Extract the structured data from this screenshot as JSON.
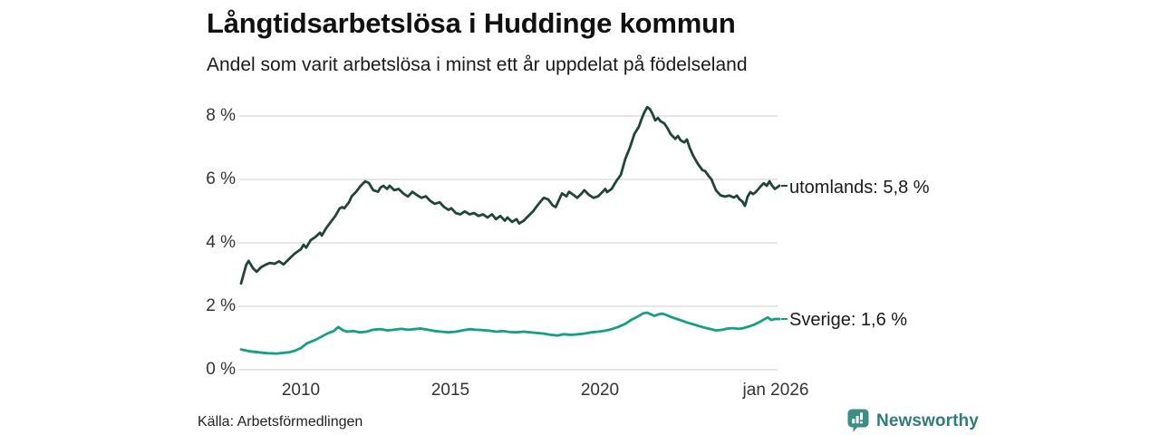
{
  "header": {
    "title": "Långtidsarbetslösa i Huddinge kommun",
    "subtitle": "Andel som varit arbetslösa i minst ett år uppdelat på födelseland"
  },
  "footer": {
    "source": "Källa: Arbetsförmedlingen",
    "brand_name": "Newsworthy"
  },
  "colors": {
    "series_utomlands": "#20453c",
    "series_sverige": "#16a083",
    "grid": "#d8d8d8",
    "brand_teal_icon": "#3d8d86",
    "brand_teal_text": "#2e7d77",
    "text": "#1a1a1a"
  },
  "chart_data": {
    "type": "line",
    "title": "Långtidsarbetslösa i Huddinge kommun",
    "subtitle": "Andel som varit arbetslösa i minst ett år uppdelat på födelseland",
    "xlabel": "",
    "ylabel": "",
    "grid": "horizontal",
    "legend_position": "end-of-line-labels-right",
    "xlim": [
      2008.0,
      2026.05
    ],
    "ylim": [
      0,
      8.6
    ],
    "y_ticks": [
      {
        "value": 8,
        "label": "8 %"
      },
      {
        "value": 6,
        "label": "6 %"
      },
      {
        "value": 4,
        "label": "4 %"
      },
      {
        "value": 2,
        "label": "2 %"
      },
      {
        "value": 0,
        "label": "0 %"
      }
    ],
    "x_ticks": [
      {
        "value": 2010,
        "label": "2010"
      },
      {
        "value": 2015,
        "label": "2015"
      },
      {
        "value": 2020,
        "label": "2020"
      },
      {
        "value": 2026,
        "label": "jan 2026"
      }
    ],
    "series": [
      {
        "name": "utomlands",
        "label": "utomlands: 5,8 %",
        "last_value": "5,8 %",
        "color": "#20453c",
        "points": [
          [
            2008.0,
            2.72
          ],
          [
            2008.17,
            3.3
          ],
          [
            2008.25,
            3.43
          ],
          [
            2008.4,
            3.2
          ],
          [
            2008.52,
            3.09
          ],
          [
            2008.67,
            3.23
          ],
          [
            2008.82,
            3.31
          ],
          [
            2008.97,
            3.37
          ],
          [
            2009.12,
            3.34
          ],
          [
            2009.27,
            3.42
          ],
          [
            2009.42,
            3.32
          ],
          [
            2009.58,
            3.47
          ],
          [
            2009.79,
            3.66
          ],
          [
            2010.0,
            3.8
          ],
          [
            2010.09,
            3.94
          ],
          [
            2010.18,
            3.85
          ],
          [
            2010.33,
            4.09
          ],
          [
            2010.48,
            4.18
          ],
          [
            2010.64,
            4.32
          ],
          [
            2010.7,
            4.23
          ],
          [
            2010.85,
            4.47
          ],
          [
            2011.0,
            4.66
          ],
          [
            2011.15,
            4.85
          ],
          [
            2011.3,
            5.09
          ],
          [
            2011.39,
            5.13
          ],
          [
            2011.45,
            5.09
          ],
          [
            2011.61,
            5.28
          ],
          [
            2011.7,
            5.47
          ],
          [
            2011.85,
            5.61
          ],
          [
            2012.0,
            5.8
          ],
          [
            2012.15,
            5.94
          ],
          [
            2012.27,
            5.89
          ],
          [
            2012.42,
            5.66
          ],
          [
            2012.58,
            5.61
          ],
          [
            2012.67,
            5.75
          ],
          [
            2012.76,
            5.8
          ],
          [
            2012.88,
            5.7
          ],
          [
            2012.97,
            5.8
          ],
          [
            2013.12,
            5.66
          ],
          [
            2013.27,
            5.7
          ],
          [
            2013.42,
            5.56
          ],
          [
            2013.58,
            5.46
          ],
          [
            2013.73,
            5.61
          ],
          [
            2013.88,
            5.51
          ],
          [
            2014.03,
            5.42
          ],
          [
            2014.18,
            5.47
          ],
          [
            2014.33,
            5.32
          ],
          [
            2014.48,
            5.23
          ],
          [
            2014.64,
            5.28
          ],
          [
            2014.79,
            5.13
          ],
          [
            2014.94,
            5.04
          ],
          [
            2015.03,
            5.09
          ],
          [
            2015.18,
            4.94
          ],
          [
            2015.33,
            4.9
          ],
          [
            2015.48,
            4.99
          ],
          [
            2015.64,
            4.9
          ],
          [
            2015.79,
            4.94
          ],
          [
            2015.94,
            4.85
          ],
          [
            2016.09,
            4.9
          ],
          [
            2016.24,
            4.8
          ],
          [
            2016.39,
            4.9
          ],
          [
            2016.52,
            4.75
          ],
          [
            2016.67,
            4.85
          ],
          [
            2016.82,
            4.7
          ],
          [
            2016.91,
            4.8
          ],
          [
            2017.06,
            4.66
          ],
          [
            2017.21,
            4.75
          ],
          [
            2017.3,
            4.61
          ],
          [
            2017.45,
            4.7
          ],
          [
            2017.61,
            4.85
          ],
          [
            2017.76,
            4.99
          ],
          [
            2017.91,
            5.18
          ],
          [
            2018.03,
            5.32
          ],
          [
            2018.12,
            5.42
          ],
          [
            2018.27,
            5.37
          ],
          [
            2018.42,
            5.18
          ],
          [
            2018.52,
            5.13
          ],
          [
            2018.64,
            5.37
          ],
          [
            2018.73,
            5.56
          ],
          [
            2018.88,
            5.47
          ],
          [
            2018.97,
            5.61
          ],
          [
            2019.12,
            5.51
          ],
          [
            2019.24,
            5.42
          ],
          [
            2019.39,
            5.56
          ],
          [
            2019.48,
            5.66
          ],
          [
            2019.64,
            5.51
          ],
          [
            2019.79,
            5.42
          ],
          [
            2019.94,
            5.47
          ],
          [
            2020.09,
            5.61
          ],
          [
            2020.18,
            5.7
          ],
          [
            2020.24,
            5.6
          ],
          [
            2020.39,
            5.7
          ],
          [
            2020.55,
            5.95
          ],
          [
            2020.7,
            6.15
          ],
          [
            2020.85,
            6.65
          ],
          [
            2021.0,
            7.0
          ],
          [
            2021.15,
            7.43
          ],
          [
            2021.3,
            7.66
          ],
          [
            2021.39,
            7.9
          ],
          [
            2021.48,
            8.1
          ],
          [
            2021.58,
            8.28
          ],
          [
            2021.67,
            8.22
          ],
          [
            2021.76,
            8.06
          ],
          [
            2021.85,
            7.86
          ],
          [
            2021.94,
            7.94
          ],
          [
            2022.03,
            7.83
          ],
          [
            2022.15,
            7.77
          ],
          [
            2022.27,
            7.6
          ],
          [
            2022.36,
            7.43
          ],
          [
            2022.52,
            7.28
          ],
          [
            2022.61,
            7.37
          ],
          [
            2022.7,
            7.23
          ],
          [
            2022.82,
            7.17
          ],
          [
            2022.91,
            7.26
          ],
          [
            2023.0,
            7.0
          ],
          [
            2023.12,
            6.74
          ],
          [
            2023.27,
            6.5
          ],
          [
            2023.42,
            6.3
          ],
          [
            2023.52,
            6.26
          ],
          [
            2023.61,
            6.14
          ],
          [
            2023.73,
            6.0
          ],
          [
            2023.88,
            5.66
          ],
          [
            2024.03,
            5.5
          ],
          [
            2024.18,
            5.46
          ],
          [
            2024.33,
            5.49
          ],
          [
            2024.48,
            5.43
          ],
          [
            2024.58,
            5.49
          ],
          [
            2024.67,
            5.37
          ],
          [
            2024.76,
            5.31
          ],
          [
            2024.85,
            5.17
          ],
          [
            2024.94,
            5.46
          ],
          [
            2025.03,
            5.6
          ],
          [
            2025.12,
            5.54
          ],
          [
            2025.21,
            5.6
          ],
          [
            2025.3,
            5.7
          ],
          [
            2025.39,
            5.8
          ],
          [
            2025.48,
            5.88
          ],
          [
            2025.58,
            5.8
          ],
          [
            2025.67,
            5.94
          ],
          [
            2025.76,
            5.8
          ],
          [
            2025.85,
            5.7
          ],
          [
            2026.0,
            5.8
          ]
        ]
      },
      {
        "name": "Sverige",
        "label": "Sverige: 1,6 %",
        "last_value": "1,6 %",
        "color": "#16a083",
        "points": [
          [
            2008.0,
            0.64
          ],
          [
            2008.3,
            0.58
          ],
          [
            2008.6,
            0.55
          ],
          [
            2008.9,
            0.52
          ],
          [
            2009.2,
            0.51
          ],
          [
            2009.4,
            0.53
          ],
          [
            2009.6,
            0.55
          ],
          [
            2009.8,
            0.6
          ],
          [
            2010.0,
            0.68
          ],
          [
            2010.2,
            0.83
          ],
          [
            2010.5,
            0.95
          ],
          [
            2010.7,
            1.05
          ],
          [
            2010.9,
            1.15
          ],
          [
            2011.1,
            1.22
          ],
          [
            2011.25,
            1.35
          ],
          [
            2011.4,
            1.25
          ],
          [
            2011.55,
            1.2
          ],
          [
            2011.75,
            1.22
          ],
          [
            2011.97,
            1.18
          ],
          [
            2012.2,
            1.2
          ],
          [
            2012.4,
            1.26
          ],
          [
            2012.67,
            1.28
          ],
          [
            2012.9,
            1.24
          ],
          [
            2013.1,
            1.26
          ],
          [
            2013.36,
            1.29
          ],
          [
            2013.58,
            1.26
          ],
          [
            2013.8,
            1.28
          ],
          [
            2014.0,
            1.3
          ],
          [
            2014.24,
            1.26
          ],
          [
            2014.48,
            1.22
          ],
          [
            2014.7,
            1.2
          ],
          [
            2014.94,
            1.18
          ],
          [
            2015.18,
            1.2
          ],
          [
            2015.4,
            1.24
          ],
          [
            2015.64,
            1.28
          ],
          [
            2015.85,
            1.26
          ],
          [
            2016.09,
            1.25
          ],
          [
            2016.3,
            1.23
          ],
          [
            2016.55,
            1.2
          ],
          [
            2016.76,
            1.22
          ],
          [
            2016.97,
            1.19
          ],
          [
            2017.2,
            1.18
          ],
          [
            2017.45,
            1.2
          ],
          [
            2017.67,
            1.18
          ],
          [
            2017.88,
            1.16
          ],
          [
            2018.12,
            1.14
          ],
          [
            2018.36,
            1.1
          ],
          [
            2018.58,
            1.08
          ],
          [
            2018.79,
            1.12
          ],
          [
            2019.03,
            1.1
          ],
          [
            2019.27,
            1.12
          ],
          [
            2019.48,
            1.14
          ],
          [
            2019.7,
            1.18
          ],
          [
            2019.94,
            1.2
          ],
          [
            2020.18,
            1.23
          ],
          [
            2020.39,
            1.28
          ],
          [
            2020.61,
            1.35
          ],
          [
            2020.85,
            1.45
          ],
          [
            2021.06,
            1.58
          ],
          [
            2021.27,
            1.68
          ],
          [
            2021.45,
            1.78
          ],
          [
            2021.58,
            1.8
          ],
          [
            2021.7,
            1.75
          ],
          [
            2021.82,
            1.7
          ],
          [
            2021.97,
            1.75
          ],
          [
            2022.09,
            1.77
          ],
          [
            2022.24,
            1.72
          ],
          [
            2022.39,
            1.66
          ],
          [
            2022.58,
            1.6
          ],
          [
            2022.76,
            1.54
          ],
          [
            2022.94,
            1.48
          ],
          [
            2023.12,
            1.43
          ],
          [
            2023.3,
            1.38
          ],
          [
            2023.48,
            1.33
          ],
          [
            2023.67,
            1.29
          ],
          [
            2023.88,
            1.24
          ],
          [
            2024.09,
            1.26
          ],
          [
            2024.27,
            1.3
          ],
          [
            2024.45,
            1.31
          ],
          [
            2024.64,
            1.29
          ],
          [
            2024.79,
            1.31
          ],
          [
            2024.97,
            1.36
          ],
          [
            2025.15,
            1.42
          ],
          [
            2025.33,
            1.5
          ],
          [
            2025.48,
            1.58
          ],
          [
            2025.61,
            1.65
          ],
          [
            2025.73,
            1.57
          ],
          [
            2025.85,
            1.6
          ],
          [
            2026.0,
            1.6
          ]
        ]
      }
    ]
  }
}
